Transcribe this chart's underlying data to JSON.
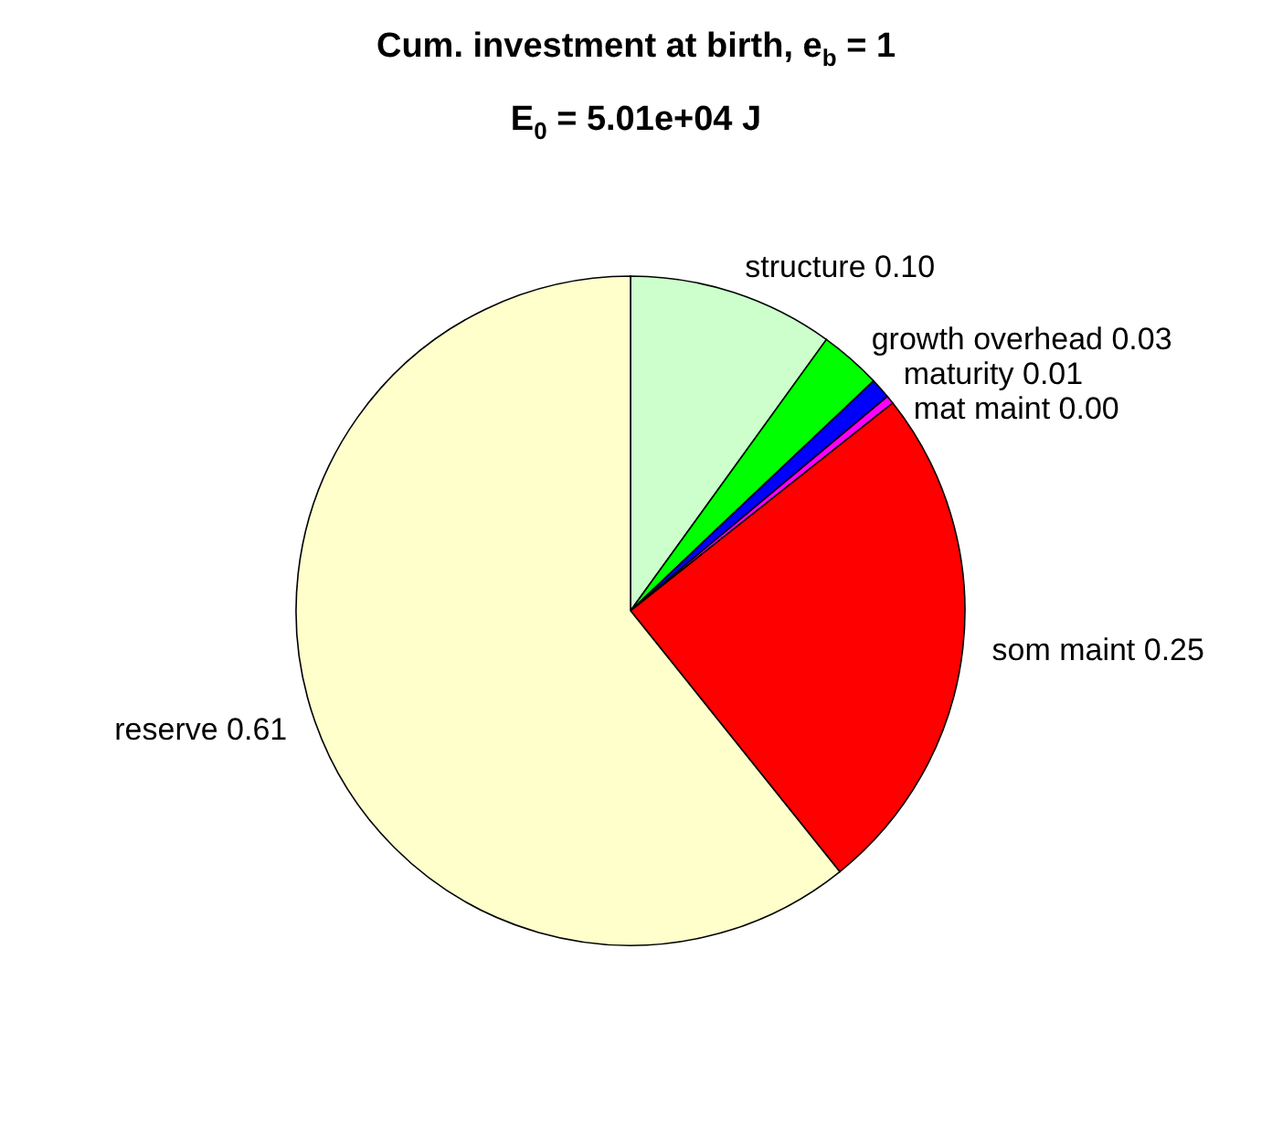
{
  "chart_data": {
    "type": "pie",
    "title": "Cum. investment at birth, e$_{b}$ = 1",
    "subtitle": "E$_{0}$ = 5.01e+04 J",
    "categories": [
      "structure 0.10",
      "growth overhead 0.03",
      "maturity 0.01",
      "mat maint 0.00",
      "som maint 0.25",
      "reserve 0.61"
    ],
    "values": [
      0.1,
      0.03,
      0.01,
      0.004,
      0.25,
      0.61
    ],
    "colors": [
      "#ccffcc",
      "#00ff00",
      "#0000ff",
      "#ff00ff",
      "#ff0000",
      "#ffffcc"
    ]
  }
}
